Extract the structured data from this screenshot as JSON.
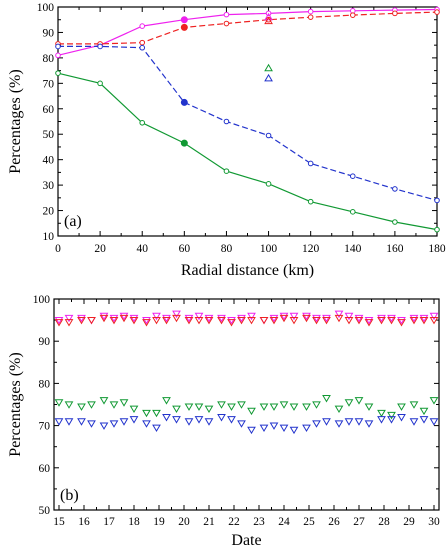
{
  "chart_data": [
    {
      "type": "line",
      "panel_label": "(a)",
      "xlabel": "Radial distance (km)",
      "ylabel": "Percentages (%)",
      "xlim": [
        0,
        180
      ],
      "ylim": [
        10,
        100
      ],
      "xticks": [
        "0",
        "20",
        "40",
        "60",
        "80",
        "100",
        "120",
        "140",
        "160",
        "180"
      ],
      "yticks": [
        "10",
        "20",
        "30",
        "40",
        "50",
        "60",
        "70",
        "80",
        "90",
        "100"
      ],
      "grid": false,
      "series": [
        {
          "color": "#ee22ee",
          "style": "solid",
          "marker": "circle-open",
          "x": [
            0,
            20,
            40,
            60,
            80,
            100,
            120,
            140,
            160,
            180
          ],
          "y": [
            81,
            85,
            92.5,
            95,
            97,
            97.5,
            98.2,
            98.5,
            98.8,
            99
          ]
        },
        {
          "color": "#ee2222",
          "style": "dashed",
          "marker": "circle-open",
          "x": [
            0,
            20,
            40,
            60,
            80,
            100,
            120,
            140,
            160,
            180
          ],
          "y": [
            85.5,
            85.5,
            86,
            92,
            93.5,
            95,
            96,
            96.8,
            97.5,
            98
          ]
        },
        {
          "color": "#2233cc",
          "style": "dashed",
          "marker": "circle-open",
          "x": [
            0,
            20,
            40,
            60,
            80,
            100,
            120,
            140,
            160,
            180
          ],
          "y": [
            84.5,
            84.5,
            84,
            62.5,
            55,
            49.5,
            38.5,
            33.5,
            28.5,
            24
          ]
        },
        {
          "color": "#119933",
          "style": "solid",
          "marker": "circle-open",
          "x": [
            0,
            20,
            40,
            60,
            80,
            100,
            120,
            140,
            160,
            180
          ],
          "y": [
            74,
            70,
            54.5,
            46.5,
            35.5,
            30.5,
            23.5,
            19.5,
            15.5,
            12.5
          ]
        }
      ],
      "filled_points": [
        {
          "color": "#ee22ee",
          "x": 60,
          "y": 95
        },
        {
          "color": "#ee2222",
          "x": 60,
          "y": 92
        },
        {
          "color": "#2233cc",
          "x": 60,
          "y": 62.5
        },
        {
          "color": "#119933",
          "x": 60,
          "y": 46.5
        }
      ],
      "triangles": [
        {
          "color": "#ee22ee",
          "x": 100,
          "y": 96
        },
        {
          "color": "#ee2222",
          "x": 100,
          "y": 94.5
        },
        {
          "color": "#119933",
          "x": 100,
          "y": 76
        },
        {
          "color": "#2233cc",
          "x": 100,
          "y": 72
        }
      ]
    },
    {
      "type": "scatter",
      "panel_label": "(b)",
      "xlabel": "Date",
      "ylabel": "Percentages (%)",
      "xlim": [
        14.8,
        30.2
      ],
      "ylim": [
        50,
        100
      ],
      "xticks": [
        "15",
        "16",
        "17",
        "18",
        "19",
        "20",
        "21",
        "22",
        "23",
        "24",
        "25",
        "26",
        "27",
        "28",
        "29",
        "30"
      ],
      "yticks": [
        "50",
        "60",
        "70",
        "80",
        "90",
        "100"
      ],
      "grid": false,
      "marker": "triangle-down-open",
      "x": [
        15.0,
        15.4,
        15.9,
        16.3,
        16.8,
        17.2,
        17.6,
        18.0,
        18.5,
        18.9,
        19.3,
        19.7,
        20.2,
        20.6,
        21.0,
        21.5,
        21.9,
        22.3,
        22.7,
        23.2,
        23.6,
        24.0,
        24.4,
        24.9,
        25.3,
        25.7,
        26.2,
        26.6,
        27.0,
        27.4,
        27.9,
        28.3,
        28.7,
        29.2,
        29.6,
        30.0
      ],
      "series": [
        {
          "color": "#ee22ee",
          "values": [
            95,
            95.5,
            95.5,
            95,
            96,
            95.5,
            96,
            95.5,
            95,
            96,
            95.5,
            96.5,
            95.5,
            96,
            95.5,
            95.5,
            95,
            95.5,
            96,
            95,
            95.5,
            96,
            96,
            96,
            95.5,
            95.5,
            96.5,
            96,
            95.5,
            95,
            95.5,
            95.5,
            95,
            95.5,
            95.5,
            96
          ]
        },
        {
          "color": "#ee2222",
          "values": [
            94.5,
            94.5,
            95,
            95,
            95.5,
            95,
            95.5,
            95,
            94.5,
            95,
            95,
            95.5,
            95,
            95,
            95,
            95,
            94.5,
            95,
            95,
            95,
            95,
            95.5,
            95,
            95.5,
            95,
            95,
            95.5,
            95,
            95,
            94.5,
            95,
            95,
            94.5,
            95,
            95,
            95
          ]
        },
        {
          "color": "#119933",
          "values": [
            75.5,
            75,
            74.5,
            75,
            76,
            75,
            75.5,
            74,
            73,
            73,
            76,
            74,
            74.5,
            74.5,
            74,
            75,
            74.5,
            75,
            73.5,
            74.5,
            74.5,
            75,
            74.5,
            74.5,
            75,
            76.5,
            74,
            75.5,
            76,
            74.5,
            73,
            72.5,
            74.5,
            75,
            73.5,
            76
          ]
        },
        {
          "color": "#2233cc",
          "values": [
            71,
            71,
            71,
            70.5,
            70,
            70.5,
            71,
            71.5,
            70.5,
            69.5,
            72,
            71.5,
            71,
            71.5,
            71,
            72,
            71.5,
            70.5,
            69,
            69.5,
            70,
            69.5,
            69,
            69.5,
            70.5,
            71,
            70.5,
            71,
            71,
            70.5,
            71.5,
            71.5,
            72,
            71,
            71.5,
            71
          ]
        }
      ]
    }
  ]
}
